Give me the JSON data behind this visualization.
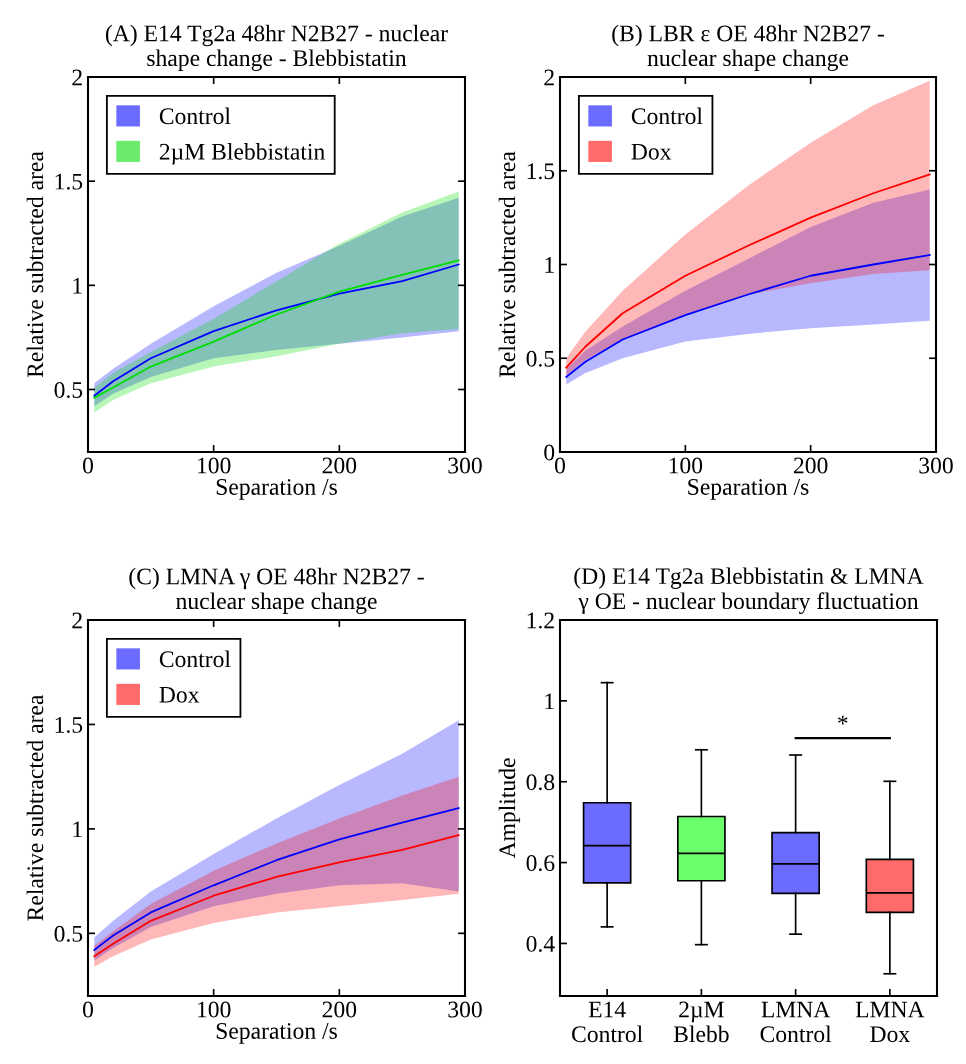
{
  "chart_data": [
    {
      "type": "line",
      "title": "(A) E14 Tg2a 48hr N2B27 - nuclear\nshape change - Blebbistatin",
      "xlabel": "Separation /s",
      "ylabel": "Relative subtracted area",
      "xlim": [
        0,
        300
      ],
      "xticks": [
        0,
        100,
        200,
        300
      ],
      "ylim": [
        0.2,
        2
      ],
      "yticks": [
        0.5,
        1,
        1.5,
        2
      ],
      "legend": "top left",
      "grid": false,
      "x": [
        5,
        20,
        50,
        100,
        150,
        200,
        250,
        295
      ],
      "series": [
        {
          "name": "Control",
          "color": "#0000ff",
          "values": [
            0.47,
            0.54,
            0.65,
            0.78,
            0.88,
            0.96,
            1.02,
            1.1
          ],
          "lower": [
            0.42,
            0.48,
            0.56,
            0.65,
            0.69,
            0.72,
            0.75,
            0.78
          ],
          "upper": [
            0.53,
            0.6,
            0.72,
            0.9,
            1.06,
            1.19,
            1.33,
            1.42
          ]
        },
        {
          "name": "2µM Blebbistatin",
          "color": "#00dd00",
          "values": [
            0.46,
            0.51,
            0.61,
            0.73,
            0.86,
            0.97,
            1.05,
            1.12
          ],
          "lower": [
            0.39,
            0.45,
            0.53,
            0.61,
            0.66,
            0.72,
            0.77,
            0.79
          ],
          "upper": [
            0.51,
            0.58,
            0.68,
            0.84,
            1.02,
            1.2,
            1.35,
            1.45
          ]
        }
      ]
    },
    {
      "type": "line",
      "title": "(B) LBR ε OE 48hr N2B27 -\nnuclear shape change",
      "xlabel": "Separation /s",
      "ylabel": "Relative subtracted area",
      "xlim": [
        0,
        300
      ],
      "xticks": [
        0,
        100,
        200,
        300
      ],
      "ylim": [
        0,
        2
      ],
      "yticks": [
        0,
        0.5,
        1,
        1.5,
        2
      ],
      "legend": "top left",
      "grid": false,
      "x": [
        5,
        20,
        50,
        100,
        150,
        200,
        250,
        295
      ],
      "series": [
        {
          "name": "Control",
          "color": "#0000ff",
          "values": [
            0.4,
            0.48,
            0.6,
            0.73,
            0.84,
            0.94,
            1.0,
            1.05
          ],
          "lower": [
            0.36,
            0.42,
            0.5,
            0.59,
            0.63,
            0.66,
            0.68,
            0.7
          ],
          "upper": [
            0.44,
            0.54,
            0.67,
            0.86,
            1.03,
            1.2,
            1.33,
            1.4
          ]
        },
        {
          "name": "Dox",
          "color": "#ff0000",
          "values": [
            0.45,
            0.56,
            0.74,
            0.94,
            1.1,
            1.25,
            1.38,
            1.48
          ],
          "lower": [
            0.41,
            0.49,
            0.6,
            0.73,
            0.84,
            0.9,
            0.95,
            0.97
          ],
          "upper": [
            0.5,
            0.64,
            0.86,
            1.16,
            1.42,
            1.65,
            1.85,
            1.98
          ]
        }
      ]
    },
    {
      "type": "line",
      "title": "(C) LMNA γ OE 48hr N2B27 -\nnuclear shape change",
      "xlabel": "Separation /s",
      "ylabel": "Relative subtracted area",
      "xlim": [
        0,
        300
      ],
      "xticks": [
        0,
        100,
        200,
        300
      ],
      "ylim": [
        0.2,
        2
      ],
      "yticks": [
        0.5,
        1,
        1.5,
        2
      ],
      "legend": "top left",
      "grid": false,
      "x": [
        5,
        20,
        50,
        100,
        150,
        200,
        250,
        295
      ],
      "series": [
        {
          "name": "Control",
          "color": "#0000ff",
          "values": [
            0.42,
            0.49,
            0.6,
            0.73,
            0.85,
            0.95,
            1.03,
            1.1
          ],
          "lower": [
            0.37,
            0.43,
            0.53,
            0.63,
            0.69,
            0.73,
            0.74,
            0.7
          ],
          "upper": [
            0.48,
            0.56,
            0.7,
            0.88,
            1.05,
            1.21,
            1.36,
            1.52
          ]
        },
        {
          "name": "Dox",
          "color": "#ff0000",
          "values": [
            0.39,
            0.45,
            0.56,
            0.68,
            0.77,
            0.84,
            0.9,
            0.97
          ],
          "lower": [
            0.34,
            0.39,
            0.47,
            0.55,
            0.6,
            0.63,
            0.66,
            0.69
          ],
          "upper": [
            0.44,
            0.51,
            0.64,
            0.8,
            0.93,
            1.05,
            1.16,
            1.25
          ]
        }
      ]
    },
    {
      "type": "box",
      "title": "(D) E14 Tg2a Blebbistatin & LMNA\nγ OE - nuclear boundary fluctuation",
      "ylabel": "Amplitude",
      "categories": [
        "E14\nControl",
        "2µM\nBlebb",
        "LMNA\nControl",
        "LMNA\nDox"
      ],
      "ylim": [
        0.27,
        1.2
      ],
      "yticks": [
        0.4,
        0.6,
        0.8,
        1,
        1.2
      ],
      "grid": false,
      "colors": [
        "#6b6bff",
        "#6bff6b",
        "#6b6bff",
        "#ff6b6b"
      ],
      "boxes": [
        {
          "low": 0.441,
          "q1": 0.55,
          "median": 0.642,
          "q3": 0.748,
          "high": 1.045
        },
        {
          "low": 0.397,
          "q1": 0.555,
          "median": 0.623,
          "q3": 0.714,
          "high": 0.879
        },
        {
          "low": 0.423,
          "q1": 0.524,
          "median": 0.597,
          "q3": 0.674,
          "high": 0.866
        },
        {
          "low": 0.325,
          "q1": 0.477,
          "median": 0.525,
          "q3": 0.608,
          "high": 0.801
        }
      ],
      "annotations": [
        "*"
      ]
    }
  ]
}
